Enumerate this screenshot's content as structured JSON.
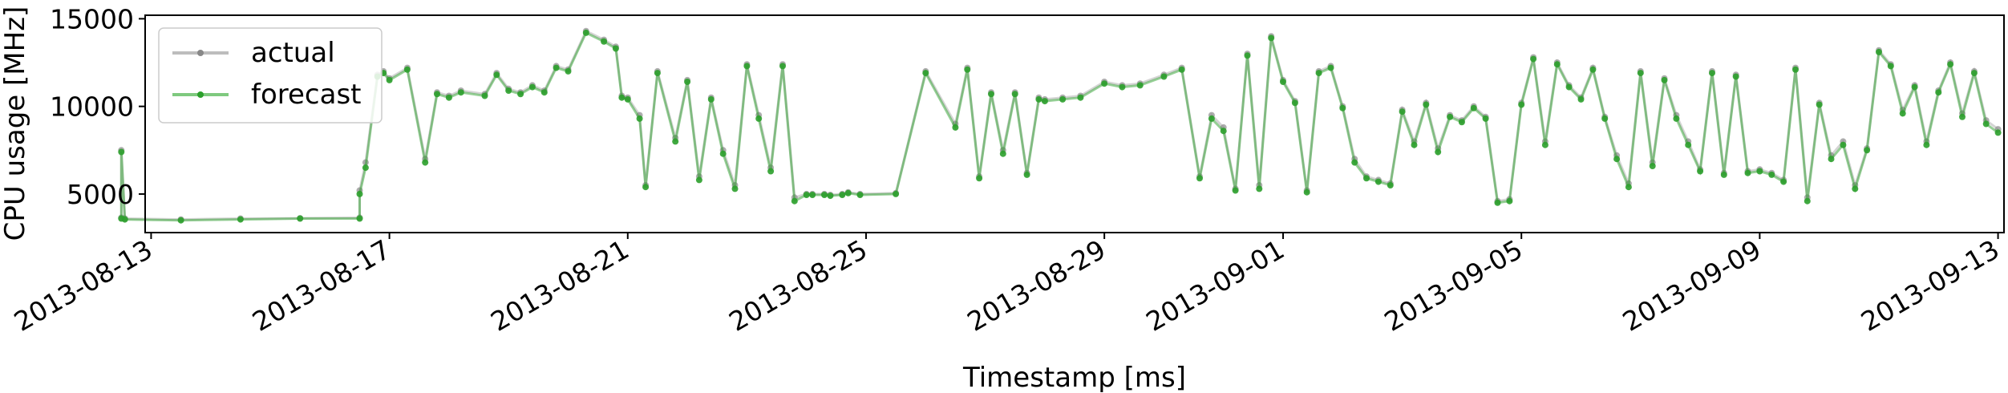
{
  "chart_data": {
    "type": "line",
    "title": "",
    "xlabel": "Timestamp [ms]",
    "ylabel": "CPU usage [MHz]",
    "xlim_days": [
      -0.1,
      31.1
    ],
    "ylim": [
      2800,
      15200
    ],
    "x_ticks": [
      {
        "day": 0,
        "label": "2013-08-13"
      },
      {
        "day": 4,
        "label": "2013-08-17"
      },
      {
        "day": 8,
        "label": "2013-08-21"
      },
      {
        "day": 12,
        "label": "2013-08-25"
      },
      {
        "day": 16,
        "label": "2013-08-29"
      },
      {
        "day": 19,
        "label": "2013-09-01"
      },
      {
        "day": 23,
        "label": "2013-09-05"
      },
      {
        "day": 27,
        "label": "2013-09-09"
      },
      {
        "day": 31,
        "label": "2013-09-13"
      }
    ],
    "y_ticks": [
      {
        "value": 5000,
        "label": "5000"
      },
      {
        "value": 10000,
        "label": "10000"
      },
      {
        "value": 15000,
        "label": "15000"
      }
    ],
    "legend": {
      "position": "top-left",
      "entries": [
        {
          "label": "actual",
          "color": "#a6a6a6"
        },
        {
          "label": "forecast",
          "color": "#2ca02c"
        }
      ]
    },
    "series": [
      {
        "name": "actual",
        "color": "#999999",
        "x_days": [
          -0.5,
          -0.5,
          -0.44,
          0.5,
          1.5,
          2.5,
          3.5,
          3.5,
          3.6,
          3.8,
          3.9,
          4.0,
          4.3,
          4.6,
          4.8,
          5.0,
          5.2,
          5.6,
          5.8,
          6.0,
          6.2,
          6.4,
          6.6,
          6.8,
          7.0,
          7.3,
          7.6,
          7.8,
          7.9,
          8.0,
          8.2,
          8.3,
          8.5,
          8.8,
          9.0,
          9.2,
          9.4,
          9.6,
          9.8,
          10.0,
          10.2,
          10.4,
          10.6,
          10.8,
          11.0,
          11.1,
          11.3,
          11.4,
          11.6,
          11.7,
          11.9,
          12.5,
          13.0,
          13.5,
          13.7,
          13.9,
          14.1,
          14.3,
          14.5,
          14.7,
          14.9,
          15.0,
          15.3,
          15.6,
          16.0,
          16.3,
          16.6,
          17.0,
          17.3,
          17.6,
          17.8,
          18.0,
          18.2,
          18.4,
          18.6,
          18.8,
          19.0,
          19.2,
          19.4,
          19.6,
          19.8,
          20.0,
          20.2,
          20.4,
          20.6,
          20.8,
          21.0,
          21.2,
          21.4,
          21.6,
          21.8,
          22.0,
          22.2,
          22.4,
          22.6,
          22.8,
          23.0,
          23.2,
          23.4,
          23.6,
          23.8,
          24.0,
          24.2,
          24.4,
          24.6,
          24.8,
          25.0,
          25.2,
          25.4,
          25.6,
          25.8,
          26.0,
          26.2,
          26.4,
          26.6,
          26.8,
          27.0,
          27.2,
          27.4,
          27.6,
          27.8,
          28.0,
          28.2,
          28.4,
          28.6,
          28.8,
          29.0,
          29.2,
          29.4,
          29.6,
          29.8,
          30.0,
          30.2,
          30.4,
          30.6,
          30.8,
          31.0
        ],
        "values": [
          3650,
          7500,
          3600,
          3550,
          3600,
          3620,
          3650,
          5200,
          6800,
          11800,
          12000,
          11600,
          12200,
          7000,
          10800,
          10600,
          10900,
          10700,
          11900,
          11000,
          10800,
          11200,
          10900,
          12300,
          12100,
          14300,
          13800,
          13400,
          10600,
          10500,
          9500,
          5500,
          12000,
          8200,
          11500,
          6000,
          10500,
          7500,
          5500,
          12400,
          9500,
          6500,
          12400,
          4800,
          5000,
          5000,
          5000,
          4950,
          5000,
          5100,
          5000,
          5050,
          12000,
          9000,
          12200,
          6000,
          10800,
          7500,
          10800,
          6200,
          10500,
          10400,
          10500,
          10600,
          11400,
          11200,
          11300,
          11800,
          12200,
          6000,
          9500,
          8800,
          5300,
          13000,
          5500,
          14000,
          11500,
          10300,
          5200,
          12000,
          12300,
          10000,
          7000,
          6000,
          5800,
          5600,
          9800,
          8000,
          10200,
          7600,
          9500,
          9200,
          10000,
          9400,
          4600,
          4700,
          10200,
          12800,
          8000,
          12500,
          11200,
          10500,
          12200,
          9400,
          7200,
          5600,
          12000,
          6800,
          11600,
          9500,
          8000,
          6400,
          12000,
          6200,
          11800,
          6300,
          6400,
          6200,
          5800,
          12200,
          4800,
          10200,
          7200,
          8000,
          5500,
          7600,
          13200,
          12400,
          9800,
          11200,
          8000,
          10900,
          12500,
          9600,
          12000,
          9200,
          8700
        ]
      },
      {
        "name": "forecast",
        "color": "#2ca02c",
        "x_days": [
          -0.5,
          -0.5,
          -0.44,
          0.5,
          1.5,
          2.5,
          3.5,
          3.5,
          3.6,
          3.8,
          3.9,
          4.0,
          4.3,
          4.6,
          4.8,
          5.0,
          5.2,
          5.6,
          5.8,
          6.0,
          6.2,
          6.4,
          6.6,
          6.8,
          7.0,
          7.3,
          7.6,
          7.8,
          7.9,
          8.0,
          8.2,
          8.3,
          8.5,
          8.8,
          9.0,
          9.2,
          9.4,
          9.6,
          9.8,
          10.0,
          10.2,
          10.4,
          10.6,
          10.8,
          11.0,
          11.1,
          11.3,
          11.4,
          11.6,
          11.7,
          11.9,
          12.5,
          13.0,
          13.5,
          13.7,
          13.9,
          14.1,
          14.3,
          14.5,
          14.7,
          14.9,
          15.0,
          15.3,
          15.6,
          16.0,
          16.3,
          16.6,
          17.0,
          17.3,
          17.6,
          17.8,
          18.0,
          18.2,
          18.4,
          18.6,
          18.8,
          19.0,
          19.2,
          19.4,
          19.6,
          19.8,
          20.0,
          20.2,
          20.4,
          20.6,
          20.8,
          21.0,
          21.2,
          21.4,
          21.6,
          21.8,
          22.0,
          22.2,
          22.4,
          22.6,
          22.8,
          23.0,
          23.2,
          23.4,
          23.6,
          23.8,
          24.0,
          24.2,
          24.4,
          24.6,
          24.8,
          25.0,
          25.2,
          25.4,
          25.6,
          25.8,
          26.0,
          26.2,
          26.4,
          26.6,
          26.8,
          27.0,
          27.2,
          27.4,
          27.6,
          27.8,
          28.0,
          28.2,
          28.4,
          28.6,
          28.8,
          29.0,
          29.2,
          29.4,
          29.6,
          29.8,
          30.0,
          30.2,
          30.4,
          30.6,
          30.8,
          31.0
        ],
        "values": [
          3600,
          7400,
          3550,
          3500,
          3550,
          3600,
          3600,
          5000,
          6500,
          11700,
          11900,
          11500,
          12100,
          6800,
          10700,
          10500,
          10800,
          10600,
          11800,
          10900,
          10700,
          11100,
          10800,
          12200,
          12000,
          14200,
          13700,
          13300,
          10500,
          10400,
          9300,
          5400,
          11900,
          8000,
          11400,
          5800,
          10400,
          7300,
          5300,
          12300,
          9300,
          6300,
          12300,
          4600,
          4950,
          4950,
          4950,
          4900,
          4950,
          5050,
          4950,
          5000,
          11900,
          8800,
          12100,
          5900,
          10700,
          7300,
          10700,
          6100,
          10400,
          10300,
          10400,
          10500,
          11300,
          11100,
          11200,
          11700,
          12100,
          5900,
          9300,
          8600,
          5200,
          12900,
          5300,
          13900,
          11400,
          10200,
          5100,
          11900,
          12200,
          9900,
          6800,
          5900,
          5700,
          5500,
          9700,
          7800,
          10100,
          7400,
          9400,
          9100,
          9900,
          9300,
          4500,
          4600,
          10100,
          12700,
          7800,
          12400,
          11100,
          10400,
          12100,
          9300,
          7000,
          5400,
          11900,
          6600,
          11500,
          9300,
          7800,
          6300,
          11900,
          6100,
          11700,
          6200,
          6300,
          6100,
          5700,
          12100,
          4600,
          10100,
          7000,
          7800,
          5300,
          7500,
          13100,
          12300,
          9600,
          11100,
          7800,
          10800,
          12400,
          9400,
          11900,
          9000,
          8500
        ]
      }
    ]
  }
}
